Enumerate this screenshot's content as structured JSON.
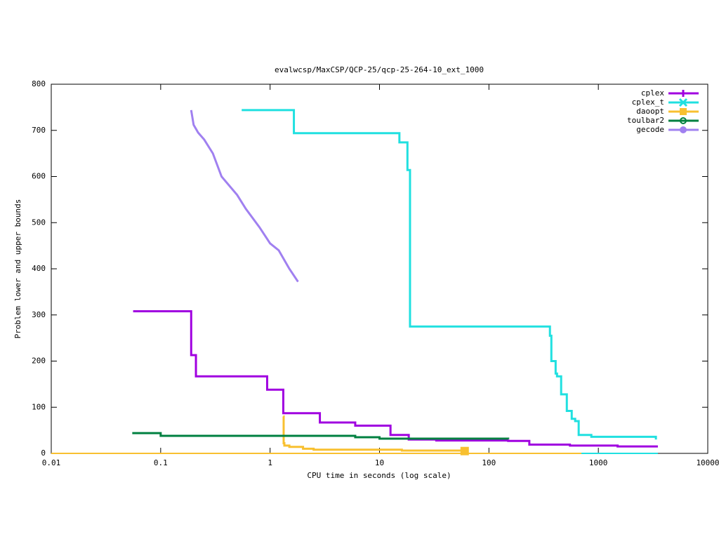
{
  "chart_data": {
    "type": "line",
    "title": "evalwcsp/MaxCSP/QCP-25/qcp-25-264-10_ext_1000",
    "x_label": "CPU time in seconds (log scale)",
    "y_label": "Problem lower and upper bounds",
    "xlim": [
      0.01,
      10000
    ],
    "xticks": [
      0.01,
      0.1,
      1,
      10,
      100,
      1000,
      10000
    ],
    "xscale": "log",
    "ylim": [
      0,
      800
    ],
    "yticks": [
      0,
      100,
      200,
      300,
      400,
      500,
      600,
      700,
      800
    ],
    "legend": "top-right",
    "series": [
      {
        "name": "cplex",
        "color": "#a000e0",
        "style": "steps",
        "marker": "plus",
        "x": [
          0.056,
          0.19,
          0.21,
          0.94,
          1.32,
          2.85,
          6.0,
          12.6,
          18.5,
          33,
          150,
          234,
          550,
          1500,
          3500
        ],
        "values": [
          308,
          213,
          167,
          138,
          87,
          67,
          60,
          40,
          30,
          28,
          27,
          19,
          17,
          15,
          15
        ]
      },
      {
        "name": "cplex_t",
        "color": "#20e0e0",
        "style": "steps",
        "marker": "cross",
        "x": [
          0.55,
          1.65,
          15.2,
          18,
          19,
          361,
          372,
          407,
          419,
          457,
          515,
          571,
          614,
          661,
          863,
          3357
        ],
        "values": [
          744,
          694,
          674,
          614,
          275,
          255,
          200,
          173,
          167,
          128,
          92,
          75,
          70,
          40,
          36,
          30
        ],
        "lower_x": [
          460,
          3500
        ],
        "lower_values": [
          0,
          0
        ]
      },
      {
        "name": "daoopt",
        "color": "#f8c030",
        "style": "steps",
        "marker": "square",
        "x": [
          1.32,
          1.33,
          1.35,
          1.5,
          2.0,
          2.5,
          16,
          60
        ],
        "values": [
          80,
          22,
          17,
          14,
          10,
          8,
          6,
          5
        ],
        "lower_x": [
          0.01,
          700
        ],
        "lower_values": [
          0,
          0
        ]
      },
      {
        "name": "toulbar2",
        "color": "#008040",
        "style": "steps",
        "marker": "circle",
        "x": [
          0.055,
          0.1,
          6,
          10,
          150
        ],
        "values": [
          44,
          38,
          35,
          32,
          31
        ]
      },
      {
        "name": "gecode",
        "color": "#a080f0",
        "style": "lines",
        "marker": "disc",
        "x": [
          0.19,
          0.2,
          0.22,
          0.25,
          0.3,
          0.36,
          0.5,
          0.6,
          0.8,
          1.0,
          1.2,
          1.5,
          1.8
        ],
        "values": [
          744,
          712,
          695,
          680,
          650,
          600,
          560,
          530,
          490,
          455,
          440,
          400,
          372
        ]
      }
    ]
  }
}
